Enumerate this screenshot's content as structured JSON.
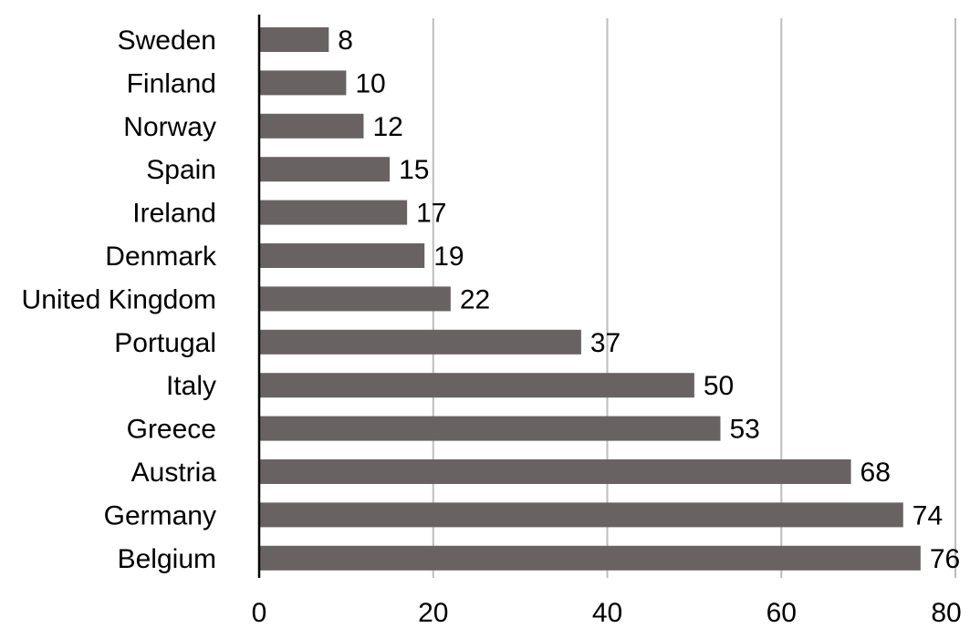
{
  "chart_data": {
    "type": "bar",
    "orientation": "horizontal",
    "categories": [
      "Sweden",
      "Finland",
      "Norway",
      "Spain",
      "Ireland",
      "Denmark",
      "United Kingdom",
      "Portugal",
      "Italy",
      "Greece",
      "Austria",
      "Germany",
      "Belgium"
    ],
    "values": [
      8,
      10,
      12,
      15,
      17,
      19,
      22,
      37,
      50,
      53,
      68,
      74,
      76
    ],
    "title": "",
    "xlabel": "",
    "ylabel": "",
    "xlim": [
      0,
      80
    ],
    "xticks": [
      0,
      20,
      40,
      60,
      80
    ],
    "grid": "vertical",
    "legend": "none",
    "bar_color": "#686263"
  }
}
